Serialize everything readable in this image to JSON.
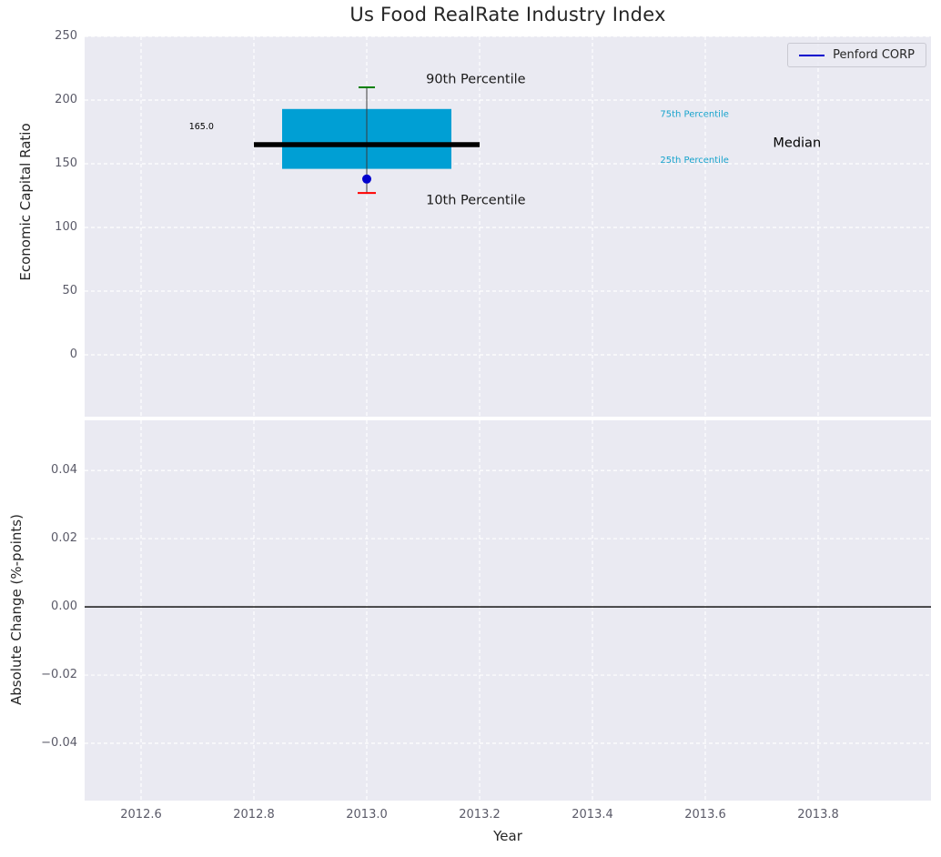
{
  "figure": {
    "background": "#ffffff",
    "axes_background": "#eaeaf2",
    "grid_color": "#ffffff"
  },
  "chart_data": [
    {
      "type": "boxplot",
      "title": "Us Food RealRate Industry Index",
      "ylabel": "Economic Capital Ratio",
      "ylim": [
        -48.6,
        250
      ],
      "xlim": [
        2012.5,
        2014.0
      ],
      "grid": true,
      "legend": {
        "label": "Penford CORP",
        "color": "#0000cd",
        "position": "upper right"
      },
      "yticks": [
        {
          "value": 250,
          "label": "250"
        },
        {
          "value": 200,
          "label": "200"
        },
        {
          "value": 150,
          "label": "150"
        },
        {
          "value": 100,
          "label": "100"
        },
        {
          "value": 50,
          "label": "50"
        },
        {
          "value": 0,
          "label": "0"
        }
      ],
      "box": {
        "x_center": 2013.0,
        "box_x_range": [
          2012.85,
          2013.15
        ],
        "median_x_range": [
          2012.8,
          2013.2
        ],
        "p10": 127,
        "q1": 146,
        "median": 165.0,
        "q3": 193,
        "p90": 210,
        "median_label": "165.0",
        "box_color": "#009fd4",
        "median_color": "#000000",
        "whisker_color": "#3a3a3a",
        "p90_cap_color": "#008000",
        "p10_cap_color": "#ff0000"
      },
      "company_point": {
        "label": "Penford CORP",
        "x": 2013.0,
        "y": 138,
        "color": "#0000cd"
      },
      "annotations": [
        {
          "text": "90th Percentile",
          "x": 2013.105,
          "y": 216,
          "color": "#1a1a1a",
          "size": 14.5
        },
        {
          "text": "10th Percentile",
          "x": 2013.105,
          "y": 121,
          "color": "#1a1a1a",
          "size": 14.5
        },
        {
          "text": "75th Percentile",
          "x": 2013.52,
          "y": 189,
          "color": "#17a3cc",
          "size": 10
        },
        {
          "text": "25th Percentile",
          "x": 2013.52,
          "y": 153,
          "color": "#17a3cc",
          "size": 10
        },
        {
          "text": "Median",
          "x": 2013.72,
          "y": 166,
          "color": "#000000",
          "size": 14.5
        },
        {
          "text": "165.0",
          "x": 2012.685,
          "y": 179,
          "color": "#000000",
          "size": 9.5
        }
      ]
    },
    {
      "type": "line",
      "ylabel": "Absolute Change (%-points)",
      "xlabel": "Year",
      "ylim": [
        -0.0568,
        0.0547
      ],
      "xlim": [
        2012.5,
        2014.0
      ],
      "grid": true,
      "yticks": [
        {
          "value": 0.04,
          "label": "0.04"
        },
        {
          "value": 0.02,
          "label": "0.02"
        },
        {
          "value": 0.0,
          "label": "0.00"
        },
        {
          "value": -0.02,
          "label": "−0.02"
        },
        {
          "value": -0.04,
          "label": "−0.04"
        }
      ],
      "xticks": [
        {
          "value": 2012.6,
          "label": "2012.6"
        },
        {
          "value": 2012.8,
          "label": "2012.8"
        },
        {
          "value": 2013.0,
          "label": "2013.0"
        },
        {
          "value": 2013.2,
          "label": "2013.2"
        },
        {
          "value": 2013.4,
          "label": "2013.4"
        },
        {
          "value": 2013.6,
          "label": "2013.6"
        },
        {
          "value": 2013.8,
          "label": "2013.8"
        }
      ],
      "zero_line": {
        "y": 0.0,
        "color": "#000000"
      }
    }
  ]
}
